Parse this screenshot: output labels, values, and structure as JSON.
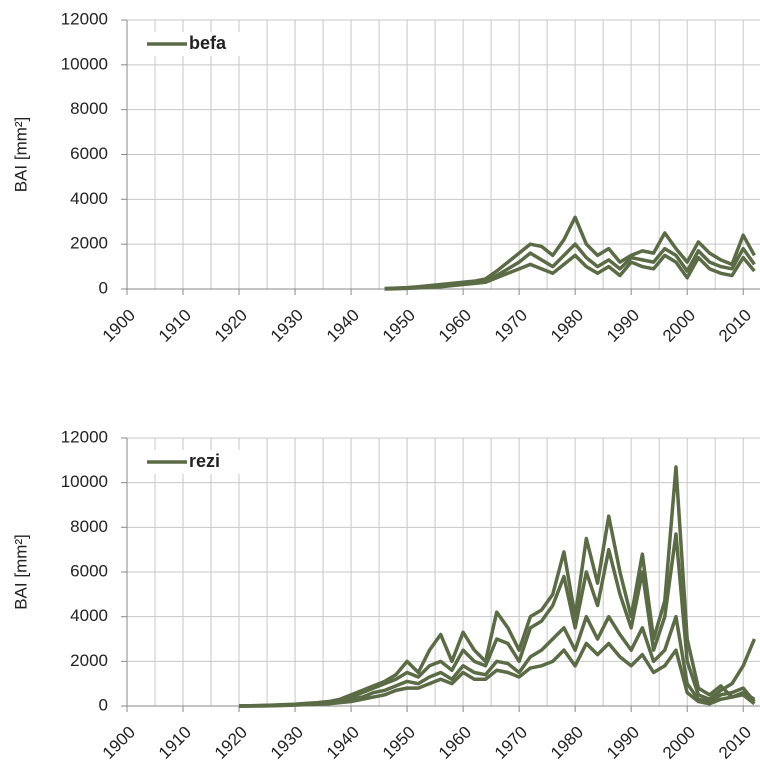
{
  "chart_data": [
    {
      "type": "line",
      "ylabel": "BAI [mm²]",
      "legend": "upper left",
      "grid": true,
      "xlim": [
        1900,
        2013
      ],
      "ylim": [
        0,
        12000
      ],
      "xticks": [
        1900,
        1910,
        1920,
        1930,
        1940,
        1950,
        1960,
        1970,
        1980,
        1990,
        2000,
        2010
      ],
      "xminorticks": [
        1905,
        1915,
        1925,
        1935,
        1945,
        1955,
        1965,
        1975,
        1985,
        1995,
        2005
      ],
      "yticks": [
        0,
        2000,
        4000,
        6000,
        8000,
        10000,
        12000
      ],
      "x": [
        1946,
        1948,
        1950,
        1952,
        1954,
        1956,
        1958,
        1960,
        1962,
        1964,
        1966,
        1968,
        1970,
        1972,
        1974,
        1976,
        1978,
        1980,
        1982,
        1984,
        1986,
        1988,
        1990,
        1992,
        1994,
        1996,
        1998,
        2000,
        2002,
        2004,
        2006,
        2008,
        2010,
        2012
      ],
      "series": [
        {
          "name": "befa",
          "color": "#5b6b46",
          "values": [
            20,
            40,
            60,
            100,
            150,
            200,
            250,
            300,
            350,
            450,
            800,
            1200,
            1600,
            2000,
            1900,
            1500,
            2200,
            3200,
            2000,
            1500,
            1800,
            1200,
            1500,
            1700,
            1600,
            2500,
            1800,
            1200,
            2100,
            1600,
            1300,
            1100,
            2400,
            1500
          ]
        },
        {
          "color": "#5b6b46",
          "values": [
            10,
            30,
            50,
            80,
            120,
            150,
            200,
            250,
            300,
            350,
            600,
            900,
            1200,
            1600,
            1300,
            1000,
            1500,
            2000,
            1400,
            1000,
            1300,
            900,
            1400,
            1300,
            1200,
            1800,
            1500,
            800,
            1700,
            1200,
            1000,
            900,
            1800,
            1100
          ]
        },
        {
          "color": "#5b6b46",
          "values": [
            0,
            10,
            30,
            50,
            80,
            100,
            150,
            200,
            250,
            300,
            500,
            700,
            900,
            1100,
            900,
            700,
            1100,
            1500,
            1000,
            700,
            1000,
            600,
            1200,
            1000,
            900,
            1500,
            1200,
            500,
            1400,
            900,
            700,
            600,
            1400,
            800
          ]
        }
      ]
    },
    {
      "type": "line",
      "ylabel": "BAI [mm²]",
      "legend": "upper left",
      "grid": true,
      "xlim": [
        1900,
        2013
      ],
      "ylim": [
        0,
        12000
      ],
      "xticks": [
        1900,
        1910,
        1920,
        1930,
        1940,
        1950,
        1960,
        1970,
        1980,
        1990,
        2000,
        2010
      ],
      "xminorticks": [
        1905,
        1915,
        1925,
        1935,
        1945,
        1955,
        1965,
        1975,
        1985,
        1995,
        2005
      ],
      "yticks": [
        0,
        2000,
        4000,
        6000,
        8000,
        10000,
        12000
      ],
      "x": [
        1920,
        1922,
        1924,
        1926,
        1928,
        1930,
        1932,
        1934,
        1936,
        1938,
        1940,
        1942,
        1944,
        1946,
        1948,
        1950,
        1952,
        1954,
        1956,
        1958,
        1960,
        1962,
        1964,
        1966,
        1968,
        1970,
        1972,
        1974,
        1976,
        1978,
        1980,
        1982,
        1984,
        1986,
        1988,
        1990,
        1992,
        1994,
        1996,
        1998,
        2000,
        2002,
        2004,
        2006,
        2008,
        2010,
        2012
      ],
      "series": [
        {
          "name": "rezi",
          "color": "#5b6b46",
          "values": [
            0,
            10,
            20,
            40,
            60,
            80,
            120,
            150,
            200,
            300,
            500,
            700,
            900,
            1100,
            1400,
            2000,
            1500,
            2500,
            3200,
            2000,
            3300,
            2500,
            2000,
            4200,
            3500,
            2500,
            4000,
            4300,
            5000,
            6900,
            4000,
            7500,
            5500,
            8500,
            6000,
            4000,
            6800,
            3000,
            4700,
            10700,
            3000,
            800,
            500,
            900,
            400,
            600,
            300
          ]
        },
        {
          "color": "#5b6b46",
          "values": [
            0,
            10,
            20,
            30,
            50,
            70,
            100,
            130,
            180,
            250,
            400,
            600,
            800,
            1000,
            1200,
            1500,
            1300,
            1800,
            2000,
            1600,
            2500,
            2000,
            1800,
            3000,
            2800,
            2000,
            3500,
            3800,
            4500,
            5800,
            3500,
            6000,
            4500,
            7000,
            5000,
            3500,
            6000,
            2500,
            4000,
            7700,
            2000,
            500,
            300,
            700,
            1000,
            1800,
            3000
          ]
        },
        {
          "color": "#5b6b46",
          "values": [
            0,
            0,
            10,
            20,
            40,
            60,
            80,
            100,
            150,
            200,
            300,
            400,
            600,
            700,
            900,
            1100,
            1000,
            1300,
            1500,
            1200,
            1800,
            1500,
            1400,
            2000,
            1900,
            1500,
            2200,
            2500,
            3000,
            3500,
            2500,
            4000,
            3000,
            4000,
            3200,
            2500,
            3500,
            2000,
            2500,
            4000,
            1000,
            300,
            200,
            500,
            600,
            800,
            200
          ]
        },
        {
          "color": "#5b6b46",
          "values": [
            0,
            0,
            0,
            10,
            20,
            40,
            60,
            80,
            100,
            150,
            200,
            300,
            400,
            500,
            700,
            800,
            800,
            1000,
            1200,
            1000,
            1500,
            1200,
            1200,
            1600,
            1500,
            1300,
            1700,
            1800,
            2000,
            2500,
            1800,
            2800,
            2300,
            2800,
            2200,
            1800,
            2300,
            1500,
            1800,
            2500,
            600,
            200,
            100,
            300,
            400,
            500,
            100
          ]
        }
      ]
    }
  ]
}
